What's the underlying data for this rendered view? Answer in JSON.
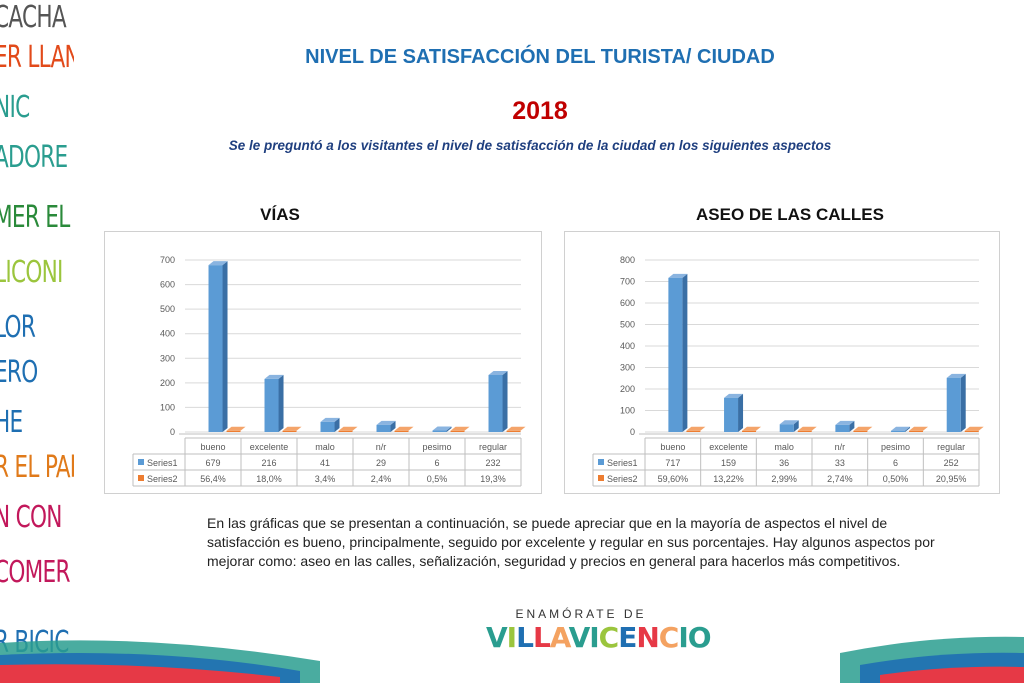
{
  "page": {
    "title": "NIVEL DE SATISFACCIÓN DEL TURISTA/ CIUDAD",
    "year": "2018",
    "subtitle": "Se le preguntó a los visitantes el nivel de satisfacción de la ciudad en los siguientes aspectos",
    "paragraph": "En las gráficas que se presentan a continuación, se puede apreciar que en la mayoría de aspectos el nivel de satisfacción es bueno, principalmente, seguido por excelente y regular en sus porcentajes. Hay algunos aspectos por mejorar como: aseo en las calles, señalización, seguridad y precios en general para hacerlos más competitivos."
  },
  "sidebar": {
    "words": [
      {
        "text": "CACHA",
        "color": "#555555"
      },
      {
        "text": "ER LLAN",
        "color": "#e24a1a"
      },
      {
        "text": "NIC",
        "color": "#2a9d8f"
      },
      {
        "text": "ADORE",
        "color": "#2a9d8f"
      },
      {
        "text": "MER EL F",
        "color": "#2a8a3a"
      },
      {
        "text": "LICONI",
        "color": "#9bc53d"
      },
      {
        "text": "LOR",
        "color": "#1f6fb2"
      },
      {
        "text": "ERO",
        "color": "#1f6fb2"
      },
      {
        "text": "HE",
        "color": "#1f6fb2"
      },
      {
        "text": "R EL PARÇ",
        "color": "#e07a1a"
      },
      {
        "text": "N CON",
        "color": "#c2185b"
      },
      {
        "text": "COMER",
        "color": "#c2185b"
      },
      {
        "text": "R BICIC",
        "color": "#1f6fb2"
      }
    ]
  },
  "logo": {
    "top_text": "ENAMÓRATE DE",
    "main_text": "VILLAVICENCIO",
    "colors": [
      "#2a9d8f",
      "#9bc53d",
      "#1f6fb2",
      "#e63946",
      "#f4a261",
      "#2a9d8f"
    ]
  },
  "colors": {
    "series1": "#5b9bd5",
    "series1_dark": "#3a6fa5",
    "series2": "#ed7d31",
    "grid": "#d9d9d9",
    "title": "#1f6fb2",
    "year": "#c00000"
  },
  "chart_data": [
    {
      "type": "bar",
      "title": "VÍAS",
      "categories": [
        "bueno",
        "excelente",
        "malo",
        "n/r",
        "pesimo",
        "regular"
      ],
      "series": [
        {
          "name": "Series1",
          "values": [
            679,
            216,
            41,
            29,
            6,
            232
          ]
        },
        {
          "name": "Series2",
          "values": [
            0.564,
            0.18,
            0.034,
            0.024,
            0.005,
            0.193
          ]
        }
      ],
      "table_rows": [
        {
          "name": "Series1",
          "cells": [
            "679",
            "216",
            "41",
            "29",
            "6",
            "232"
          ]
        },
        {
          "name": "Series2",
          "cells": [
            "56,4%",
            "18,0%",
            "3,4%",
            "2,4%",
            "0,5%",
            "19,3%"
          ]
        }
      ],
      "ylim": [
        0,
        700
      ],
      "yticks": [
        0,
        100,
        200,
        300,
        400,
        500,
        600,
        700
      ],
      "grid": true,
      "legend": "data-table"
    },
    {
      "type": "bar",
      "title": "ASEO DE LAS CALLES",
      "categories": [
        "bueno",
        "excelente",
        "malo",
        "n/r",
        "pesimo",
        "regular"
      ],
      "series": [
        {
          "name": "Series1",
          "values": [
            717,
            159,
            36,
            33,
            6,
            252
          ]
        },
        {
          "name": "Series2",
          "values": [
            0.596,
            0.1322,
            0.0299,
            0.0274,
            0.005,
            0.2095
          ]
        }
      ],
      "table_rows": [
        {
          "name": "Series1",
          "cells": [
            "717",
            "159",
            "36",
            "33",
            "6",
            "252"
          ]
        },
        {
          "name": "Series2",
          "cells": [
            "59,60%",
            "13,22%",
            "2,99%",
            "2,74%",
            "0,50%",
            "20,95%"
          ]
        }
      ],
      "ylim": [
        0,
        800
      ],
      "yticks": [
        0,
        100,
        200,
        300,
        400,
        500,
        600,
        700,
        800
      ],
      "grid": true,
      "legend": "data-table"
    }
  ]
}
